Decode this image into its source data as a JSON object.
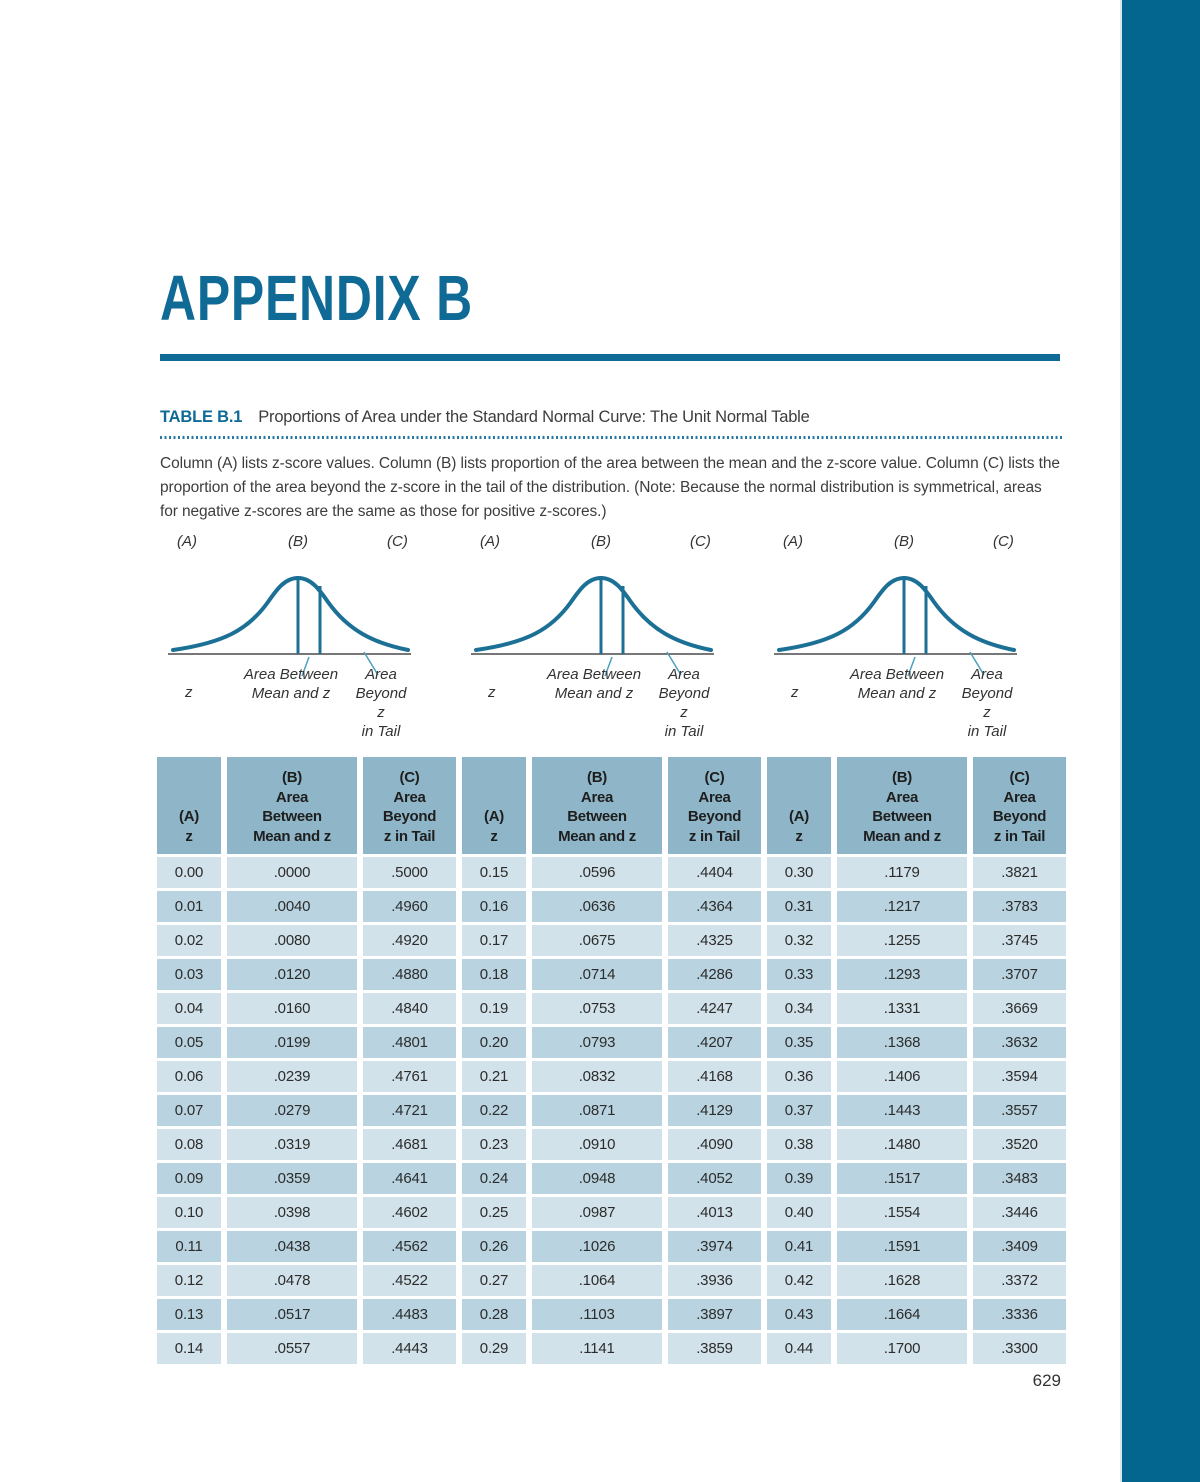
{
  "page": {
    "appendix_title": "APPENDIX B",
    "page_number": "629"
  },
  "table_caption": {
    "label": "TABLE B.1",
    "title": "Proportions of Area under the Standard Normal Curve: The Unit Normal Table"
  },
  "intro": {
    "text": "Column (A) lists z-score values. Column (B) lists proportion of the area between the mean and the z-score value. Column (C) lists the proportion of the area beyond the z-score in the tail of the distribution. (Note: Because the normal distribution is symmetrical, areas for negative z-scores are the same as those for positive z-scores.)"
  },
  "diagram": {
    "col_a": "(A)",
    "col_b": "(B)",
    "col_c": "(C)",
    "z_label": "z",
    "between_label": "Area Between\nMean and z",
    "beyond_label": "Area\nBeyond z\nin Tail"
  },
  "colors": {
    "accent_teal": "#0f6b95",
    "edge_bar": "#02668f",
    "curve": "#1c7096",
    "header_cell": "#8eb6c8",
    "row_light": "#d2e2ea",
    "row_dark": "#b9d4e0"
  },
  "table": {
    "columns": [
      "(A)\nz",
      "(B)\nArea\nBetween\nMean and z",
      "(C)\nArea\nBeyond\nz in Tail",
      "(A)\nz",
      "(B)\nArea\nBetween\nMean and z",
      "(C)\nArea\nBeyond\nz in Tail",
      "(A)\nz",
      "(B)\nArea\nBetween\nMean and z",
      "(C)\nArea\nBeyond\nz in Tail"
    ],
    "rows": [
      [
        "0.00",
        ".0000",
        ".5000",
        "0.15",
        ".0596",
        ".4404",
        "0.30",
        ".1179",
        ".3821"
      ],
      [
        "0.01",
        ".0040",
        ".4960",
        "0.16",
        ".0636",
        ".4364",
        "0.31",
        ".1217",
        ".3783"
      ],
      [
        "0.02",
        ".0080",
        ".4920",
        "0.17",
        ".0675",
        ".4325",
        "0.32",
        ".1255",
        ".3745"
      ],
      [
        "0.03",
        ".0120",
        ".4880",
        "0.18",
        ".0714",
        ".4286",
        "0.33",
        ".1293",
        ".3707"
      ],
      [
        "0.04",
        ".0160",
        ".4840",
        "0.19",
        ".0753",
        ".4247",
        "0.34",
        ".1331",
        ".3669"
      ],
      [
        "0.05",
        ".0199",
        ".4801",
        "0.20",
        ".0793",
        ".4207",
        "0.35",
        ".1368",
        ".3632"
      ],
      [
        "0.06",
        ".0239",
        ".4761",
        "0.21",
        ".0832",
        ".4168",
        "0.36",
        ".1406",
        ".3594"
      ],
      [
        "0.07",
        ".0279",
        ".4721",
        "0.22",
        ".0871",
        ".4129",
        "0.37",
        ".1443",
        ".3557"
      ],
      [
        "0.08",
        ".0319",
        ".4681",
        "0.23",
        ".0910",
        ".4090",
        "0.38",
        ".1480",
        ".3520"
      ],
      [
        "0.09",
        ".0359",
        ".4641",
        "0.24",
        ".0948",
        ".4052",
        "0.39",
        ".1517",
        ".3483"
      ],
      [
        "0.10",
        ".0398",
        ".4602",
        "0.25",
        ".0987",
        ".4013",
        "0.40",
        ".1554",
        ".3446"
      ],
      [
        "0.11",
        ".0438",
        ".4562",
        "0.26",
        ".1026",
        ".3974",
        "0.41",
        ".1591",
        ".3409"
      ],
      [
        "0.12",
        ".0478",
        ".4522",
        "0.27",
        ".1064",
        ".3936",
        "0.42",
        ".1628",
        ".3372"
      ],
      [
        "0.13",
        ".0517",
        ".4483",
        "0.28",
        ".1103",
        ".3897",
        "0.43",
        ".1664",
        ".3336"
      ],
      [
        "0.14",
        ".0557",
        ".4443",
        "0.29",
        ".1141",
        ".3859",
        "0.44",
        ".1700",
        ".3300"
      ]
    ]
  }
}
